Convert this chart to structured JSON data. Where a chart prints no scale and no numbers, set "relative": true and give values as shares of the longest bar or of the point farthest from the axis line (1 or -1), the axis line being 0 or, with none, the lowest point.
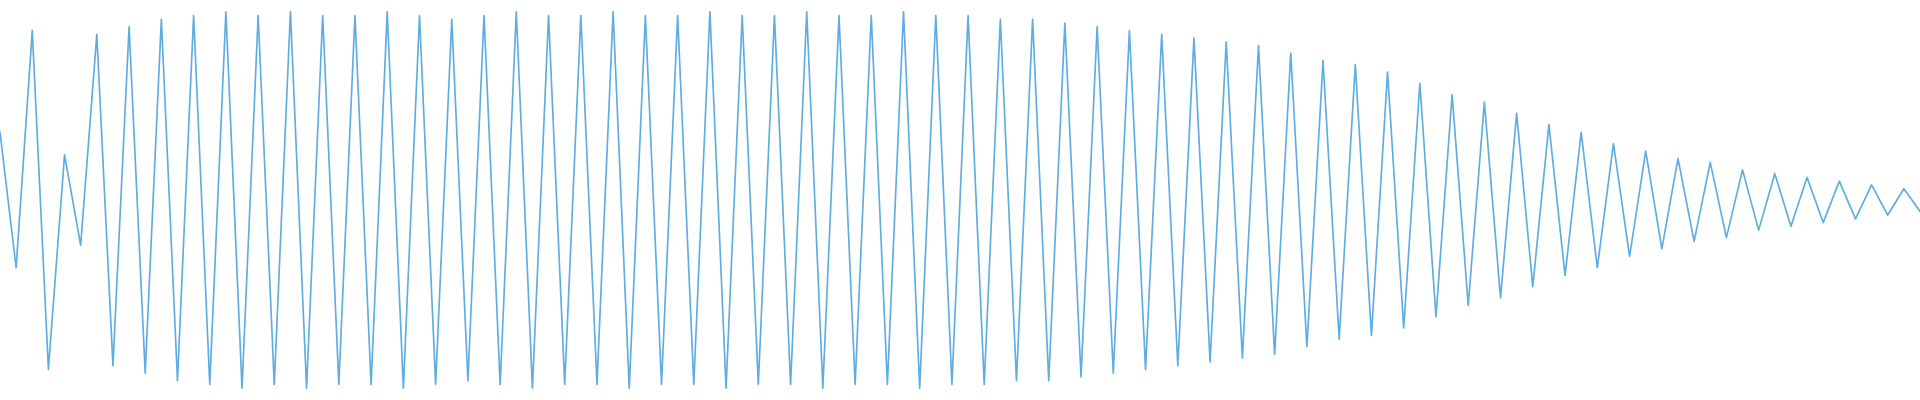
{
  "chart_data": {
    "type": "line",
    "relative": true,
    "categories": [
      null,
      null,
      null,
      null,
      null,
      null,
      null,
      null,
      null,
      null,
      null,
      null,
      null,
      null,
      null,
      null,
      null,
      null,
      null,
      null,
      null,
      null,
      null,
      null,
      null,
      null,
      null,
      null,
      null,
      null,
      null,
      null,
      null,
      null,
      null,
      null,
      null,
      null,
      null,
      null,
      null,
      null,
      null,
      null,
      null,
      null,
      null,
      null,
      null,
      null,
      null,
      null,
      null,
      null,
      null,
      null,
      null,
      null,
      null,
      null,
      null,
      null,
      null,
      null,
      null,
      null,
      null,
      null,
      null,
      null,
      null,
      null,
      null,
      null,
      null,
      null,
      null,
      null,
      null,
      null,
      null,
      null,
      null,
      null,
      null,
      null,
      null,
      null,
      null,
      null,
      null,
      null,
      null,
      null,
      null,
      null,
      null,
      null,
      null,
      null,
      null,
      null,
      null,
      null,
      null,
      null,
      null,
      null,
      null,
      null,
      null,
      null,
      null,
      null,
      null,
      null,
      null,
      null,
      null,
      null
    ],
    "series": [
      {
        "color": "#5dade2",
        "values": [
          0.68,
          0.32,
          0.95,
          0.05,
          0.62,
          0.38,
          0.94,
          0.06,
          0.96,
          0.04,
          0.98,
          0.02,
          0.99,
          0.01,
          1,
          0,
          0.99,
          0.01,
          1,
          0,
          0.99,
          0.01,
          0.99,
          0.01,
          1,
          0,
          0.99,
          0.01,
          0.98,
          0.02,
          0.99,
          0.01,
          1,
          0,
          0.99,
          0.01,
          0.99,
          0.01,
          1,
          0,
          0.99,
          0.01,
          0.99,
          0.01,
          1,
          0,
          0.99,
          0.01,
          0.99,
          0.01,
          1,
          0,
          0.99,
          0.01,
          0.99,
          0.01,
          1,
          0,
          0.99,
          0.01,
          0.99,
          0.01,
          0.98,
          0.02,
          0.98,
          0.02,
          0.97,
          0.03,
          0.96,
          0.04,
          0.95,
          0.05,
          0.94,
          0.06,
          0.93,
          0.07,
          0.92,
          0.08,
          0.91,
          0.09,
          0.89,
          0.11,
          0.87,
          0.13,
          0.86,
          0.14,
          0.84,
          0.16,
          0.81,
          0.19,
          0.78,
          0.22,
          0.76,
          0.24,
          0.73,
          0.27,
          0.7,
          0.3,
          0.68,
          0.32,
          0.65,
          0.35,
          0.63,
          0.37,
          0.61,
          0.39,
          0.6,
          0.4,
          0.58,
          0.42,
          0.57,
          0.43,
          0.56,
          0.44,
          0.55,
          0.45,
          0.54,
          0.46,
          0.53,
          0.47
        ]
      }
    ]
  }
}
